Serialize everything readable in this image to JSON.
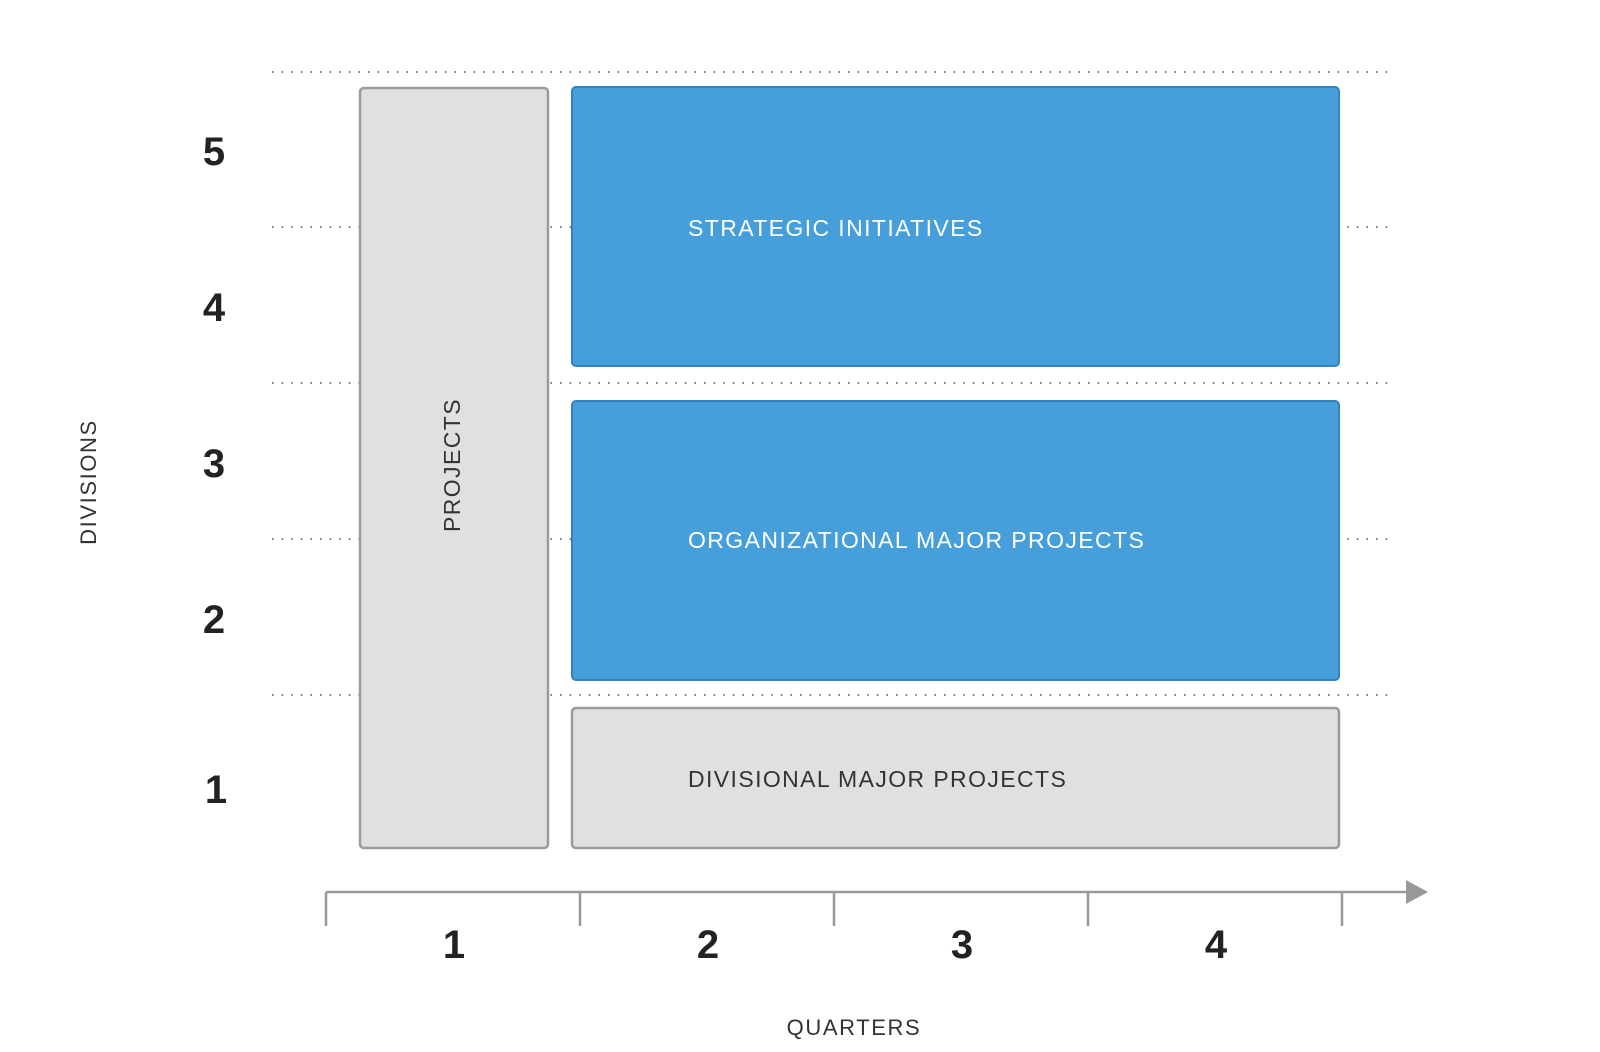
{
  "diagram": {
    "y_axis": {
      "title": "DIVISIONS",
      "labels": [
        "5",
        "4",
        "3",
        "2",
        "1"
      ]
    },
    "x_axis": {
      "title": "QUARTERS",
      "labels": [
        "1",
        "2",
        "3",
        "4"
      ]
    },
    "boxes": {
      "projects": "PROJECTS",
      "strategic": "STRATEGIC INITIATIVES",
      "organizational": "ORGANIZATIONAL MAJOR PROJECTS",
      "divisional": "DIVISIONAL MAJOR PROJECTS"
    },
    "colors": {
      "blue": "#469fda",
      "gray": "#e0e0e0",
      "gray_border": "#9a9a9a"
    }
  }
}
